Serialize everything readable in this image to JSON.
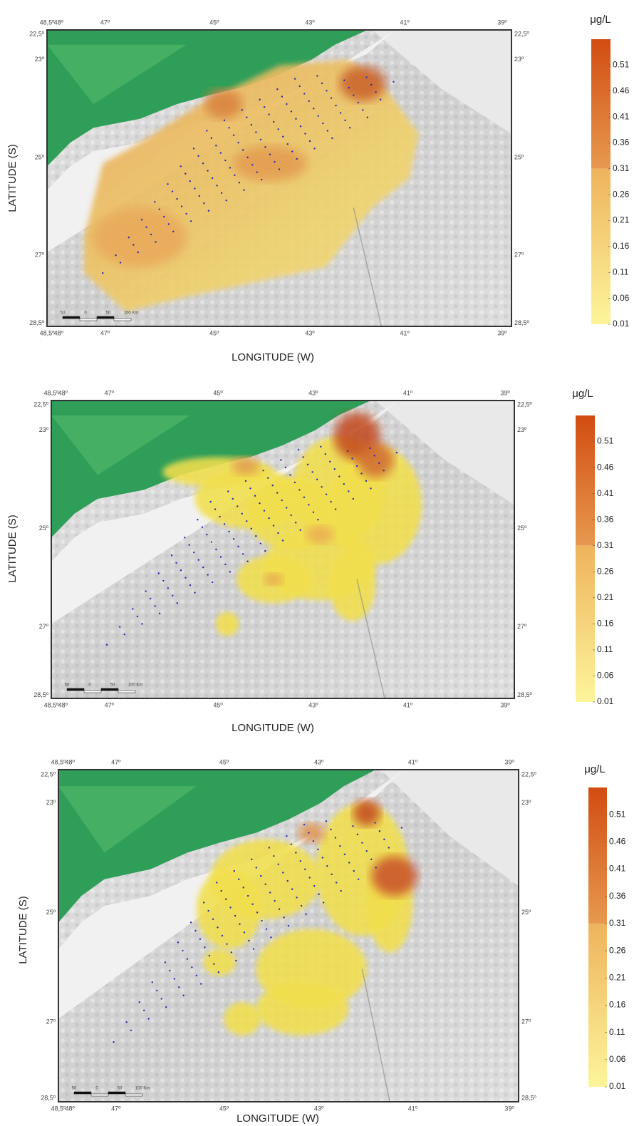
{
  "maps": [
    {
      "x_axis": {
        "title": "LONGITUDE (W)",
        "ticks": [
          "48,5º",
          "48º",
          "47º",
          "45º",
          "43º",
          "41º",
          "39º"
        ]
      },
      "y_axis": {
        "title": "LATITUDE (S)",
        "ticks": [
          "22,5º",
          "23º",
          "25º",
          "27º",
          "28,5º"
        ]
      },
      "scale_bar": {
        "labels": [
          "50",
          "0",
          "50",
          "100 Km"
        ]
      },
      "colorbar": {
        "unit": "μg/L",
        "range": [
          0.01,
          0.56
        ],
        "ticks": [
          0.51,
          0.46,
          0.41,
          0.36,
          0.31,
          0.26,
          0.21,
          0.16,
          0.11,
          0.06,
          0.01
        ]
      }
    },
    {
      "x_axis": {
        "title": "LONGITUDE (W)",
        "ticks": [
          "48,5º",
          "48º",
          "47º",
          "45º",
          "43º",
          "41º",
          "39º"
        ]
      },
      "y_axis": {
        "title": "LATITUDE (S)",
        "ticks": [
          "22,5º",
          "23º",
          "25º",
          "27º",
          "28,5º"
        ]
      },
      "scale_bar": {
        "labels": [
          "50",
          "0",
          "50",
          "100 Km"
        ]
      },
      "colorbar": {
        "unit": "μg/L",
        "range": [
          0.01,
          0.56
        ],
        "ticks": [
          0.51,
          0.46,
          0.41,
          0.36,
          0.31,
          0.26,
          0.21,
          0.16,
          0.11,
          0.06,
          0.01
        ]
      }
    },
    {
      "x_axis": {
        "title": "LONGITUDE (W)",
        "ticks": [
          "48,5º",
          "48º",
          "47º",
          "45º",
          "43º",
          "41º",
          "39º"
        ]
      },
      "y_axis": {
        "title": "LATITUDE (S)",
        "ticks": [
          "22,5º",
          "23º",
          "25º",
          "27º",
          "28,5º"
        ]
      },
      "scale_bar": {
        "labels": [
          "50",
          "0",
          "50",
          "100 Km"
        ]
      },
      "colorbar": {
        "unit": "μg/L",
        "range": [
          0.01,
          0.56
        ],
        "ticks": [
          0.51,
          0.46,
          0.41,
          0.36,
          0.31,
          0.26,
          0.21,
          0.16,
          0.11,
          0.06,
          0.01
        ]
      }
    }
  ]
}
